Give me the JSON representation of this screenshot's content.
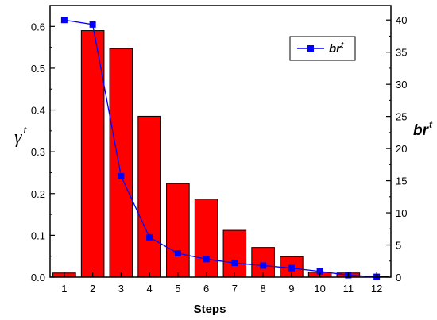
{
  "chart_data": {
    "type": "bar",
    "categories": [
      "1",
      "2",
      "3",
      "4",
      "5",
      "6",
      "7",
      "8",
      "9",
      "10",
      "11",
      "12"
    ],
    "xlabel": "Steps",
    "series": [
      {
        "axis": "left",
        "kind": "bar",
        "values": [
          0.01,
          0.59,
          0.547,
          0.385,
          0.224,
          0.187,
          0.112,
          0.071,
          0.049,
          0.012,
          0.01,
          0.001
        ],
        "color": "#ff0000"
      },
      {
        "axis": "right",
        "kind": "line",
        "name_base": "br",
        "name_sup": "t",
        "values": [
          40,
          39.3,
          15.7,
          6.2,
          3.7,
          2.8,
          2.2,
          1.8,
          1.4,
          0.9,
          0.3,
          0.05
        ],
        "color": "#0000ff",
        "marker": "square"
      }
    ],
    "left_axis": {
      "label_symbol": "γ",
      "label_sup": "t",
      "ylim": [
        0,
        0.65
      ],
      "ticks": [
        "0.0",
        "0.1",
        "0.2",
        "0.3",
        "0.4",
        "0.5",
        "0.6"
      ]
    },
    "right_axis": {
      "label_base": "br",
      "label_sup": "t",
      "ylim": [
        0,
        42.25
      ],
      "ticks": [
        "0",
        "5",
        "10",
        "15",
        "20",
        "25",
        "30",
        "35",
        "40"
      ]
    },
    "legend_position": "top-right",
    "grid": false
  }
}
